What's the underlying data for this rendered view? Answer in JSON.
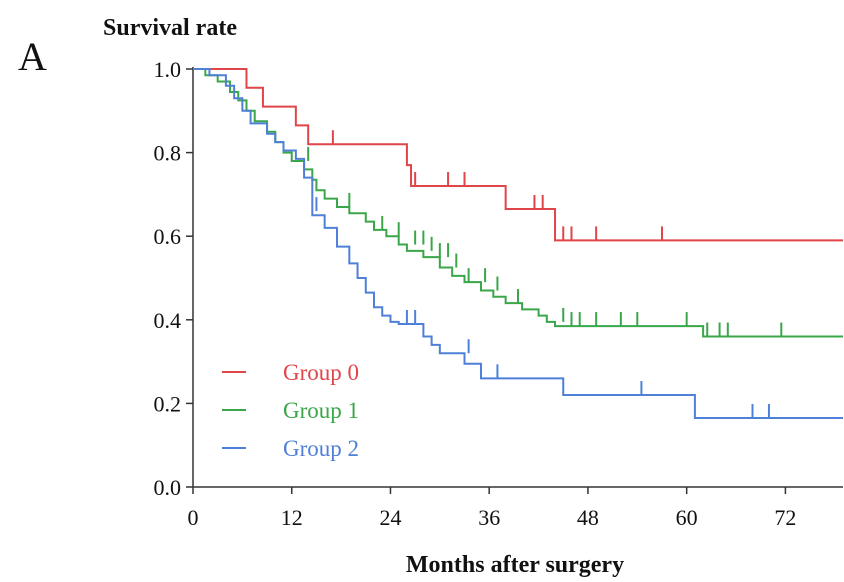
{
  "panel_label": "A",
  "chart_data": {
    "type": "line",
    "title": "",
    "xlabel": "Months after surgery",
    "ylabel": "Survival rate",
    "xlim": [
      0,
      79
    ],
    "ylim": [
      0.0,
      1.0
    ],
    "xticks": [
      "0",
      "12",
      "24",
      "36",
      "48",
      "60",
      "72"
    ],
    "yticks": [
      "0.0",
      "0.2",
      "0.4",
      "0.6",
      "0.8",
      "1.0"
    ],
    "grid": false,
    "legend_position": "bottom-left",
    "series": [
      {
        "name": "Group 0",
        "color": "#e0454a",
        "steps": [
          [
            0,
            1.0
          ],
          [
            6.5,
            0.955
          ],
          [
            8.5,
            0.91
          ],
          [
            12.5,
            0.865
          ],
          [
            14,
            0.82
          ],
          [
            26,
            0.77
          ],
          [
            26.5,
            0.72
          ],
          [
            38,
            0.665
          ],
          [
            44,
            0.59
          ],
          [
            79,
            0.59
          ]
        ],
        "censored": [
          [
            17,
            0.82
          ],
          [
            27,
            0.72
          ],
          [
            31,
            0.72
          ],
          [
            33,
            0.72
          ],
          [
            41.5,
            0.665
          ],
          [
            42.5,
            0.665
          ],
          [
            45,
            0.59
          ],
          [
            46,
            0.59
          ],
          [
            49,
            0.59
          ],
          [
            57,
            0.59
          ]
        ]
      },
      {
        "name": "Group 1",
        "color": "#3aa64a",
        "steps": [
          [
            0,
            1.0
          ],
          [
            1.5,
            0.985
          ],
          [
            3,
            0.97
          ],
          [
            4.5,
            0.945
          ],
          [
            5.5,
            0.925
          ],
          [
            6.5,
            0.9
          ],
          [
            7.5,
            0.875
          ],
          [
            9,
            0.85
          ],
          [
            10,
            0.825
          ],
          [
            11,
            0.8
          ],
          [
            12,
            0.78
          ],
          [
            13.5,
            0.76
          ],
          [
            14.5,
            0.735
          ],
          [
            15,
            0.71
          ],
          [
            16,
            0.69
          ],
          [
            17.5,
            0.67
          ],
          [
            19,
            0.655
          ],
          [
            21,
            0.635
          ],
          [
            22,
            0.615
          ],
          [
            23.5,
            0.6
          ],
          [
            25,
            0.58
          ],
          [
            26,
            0.565
          ],
          [
            28,
            0.55
          ],
          [
            30,
            0.525
          ],
          [
            31.5,
            0.505
          ],
          [
            33,
            0.49
          ],
          [
            35,
            0.47
          ],
          [
            36.5,
            0.455
          ],
          [
            38,
            0.44
          ],
          [
            40,
            0.425
          ],
          [
            42,
            0.41
          ],
          [
            43,
            0.395
          ],
          [
            44,
            0.385
          ],
          [
            46,
            0.385
          ],
          [
            62,
            0.36
          ],
          [
            79,
            0.36
          ]
        ],
        "censored": [
          [
            14,
            0.78
          ],
          [
            19,
            0.67
          ],
          [
            23,
            0.615
          ],
          [
            25,
            0.6
          ],
          [
            27,
            0.58
          ],
          [
            28,
            0.58
          ],
          [
            29,
            0.565
          ],
          [
            30,
            0.55
          ],
          [
            31,
            0.55
          ],
          [
            32,
            0.525
          ],
          [
            33.5,
            0.49
          ],
          [
            35.5,
            0.49
          ],
          [
            37,
            0.47
          ],
          [
            39.5,
            0.44
          ],
          [
            45,
            0.395
          ],
          [
            46,
            0.385
          ],
          [
            47,
            0.385
          ],
          [
            49,
            0.385
          ],
          [
            52,
            0.385
          ],
          [
            54,
            0.385
          ],
          [
            60,
            0.385
          ],
          [
            62.5,
            0.36
          ],
          [
            64,
            0.36
          ],
          [
            65,
            0.36
          ],
          [
            71.5,
            0.36
          ]
        ]
      },
      {
        "name": "Group 2",
        "color": "#4f80d8",
        "steps": [
          [
            0,
            1.0
          ],
          [
            2,
            0.985
          ],
          [
            4,
            0.96
          ],
          [
            5,
            0.93
          ],
          [
            6,
            0.9
          ],
          [
            7,
            0.87
          ],
          [
            9,
            0.845
          ],
          [
            10,
            0.825
          ],
          [
            11,
            0.805
          ],
          [
            12.5,
            0.785
          ],
          [
            13.5,
            0.74
          ],
          [
            14.5,
            0.65
          ],
          [
            16,
            0.62
          ],
          [
            17.5,
            0.575
          ],
          [
            19,
            0.535
          ],
          [
            20,
            0.5
          ],
          [
            21,
            0.465
          ],
          [
            22,
            0.43
          ],
          [
            23,
            0.41
          ],
          [
            24,
            0.395
          ],
          [
            25,
            0.39
          ],
          [
            28,
            0.36
          ],
          [
            29,
            0.34
          ],
          [
            30,
            0.32
          ],
          [
            33,
            0.295
          ],
          [
            35,
            0.26
          ],
          [
            45,
            0.22
          ],
          [
            61,
            0.165
          ],
          [
            79,
            0.165
          ]
        ],
        "censored": [
          [
            15,
            0.66
          ],
          [
            26,
            0.39
          ],
          [
            27,
            0.39
          ],
          [
            33.5,
            0.32
          ],
          [
            37,
            0.26
          ],
          [
            54.5,
            0.22
          ],
          [
            68,
            0.165
          ],
          [
            70,
            0.165
          ]
        ]
      }
    ]
  }
}
